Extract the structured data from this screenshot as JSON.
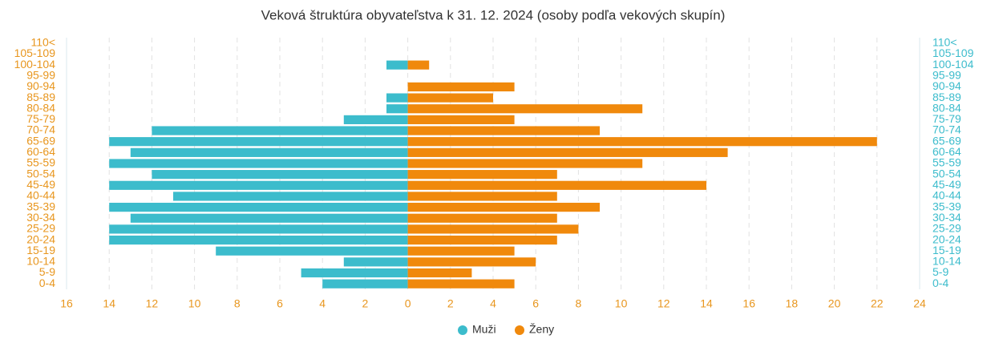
{
  "chart_data": {
    "type": "bar",
    "orientation": "horizontal",
    "title": "Veková štruktúra obyvateľstva k 31. 12. 2024 (osoby podľa vekových skupín)",
    "categories": [
      "0-4",
      "5-9",
      "10-14",
      "15-19",
      "20-24",
      "25-29",
      "30-34",
      "35-39",
      "40-44",
      "45-49",
      "50-54",
      "55-59",
      "60-64",
      "65-69",
      "70-74",
      "75-79",
      "80-84",
      "85-89",
      "90-94",
      "95-99",
      "100-104",
      "105-109",
      "110<"
    ],
    "series": [
      {
        "name": "Muži",
        "color": "#3cbccc",
        "values": [
          -4,
          -5,
          -3,
          -9,
          -14,
          -14,
          -13,
          -14,
          -11,
          -14,
          -12,
          -14,
          -13,
          -14,
          -12,
          -3,
          -1,
          -1,
          0,
          0,
          -1,
          0,
          0
        ]
      },
      {
        "name": "Ženy",
        "color": "#f0890c",
        "values": [
          5,
          3,
          6,
          5,
          7,
          8,
          7,
          9,
          7,
          14,
          7,
          11,
          15,
          22,
          9,
          5,
          11,
          4,
          5,
          0,
          1,
          0,
          0
        ]
      }
    ],
    "xlim": [
      -16,
      24
    ],
    "xticks": [
      {
        "value": -16,
        "label": "16"
      },
      {
        "value": -14,
        "label": "14"
      },
      {
        "value": -12,
        "label": "12"
      },
      {
        "value": -10,
        "label": "10"
      },
      {
        "value": -8,
        "label": "8"
      },
      {
        "value": -6,
        "label": "6"
      },
      {
        "value": -4,
        "label": "4"
      },
      {
        "value": -2,
        "label": "2"
      },
      0,
      2,
      4,
      6,
      8,
      10,
      12,
      14,
      16,
      18,
      20,
      22,
      24
    ],
    "grid": true,
    "legend": "bottom"
  }
}
